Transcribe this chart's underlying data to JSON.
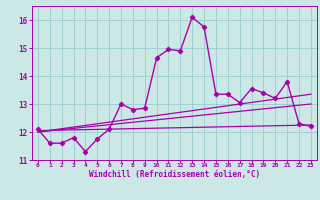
{
  "xlabel": "Windchill (Refroidissement éolien,°C)",
  "bg_color": "#cce8e6",
  "line_color": "#aa00aa",
  "grid_color": "#99cccc",
  "x": [
    0,
    1,
    2,
    3,
    4,
    5,
    6,
    7,
    8,
    9,
    10,
    11,
    12,
    13,
    14,
    15,
    16,
    17,
    18,
    19,
    20,
    21,
    22,
    23
  ],
  "y_main": [
    12.1,
    11.6,
    11.6,
    11.8,
    11.3,
    11.75,
    12.1,
    13.0,
    12.8,
    12.85,
    14.65,
    14.95,
    14.9,
    16.1,
    15.75,
    13.35,
    13.35,
    13.05,
    13.55,
    13.4,
    13.2,
    13.8,
    12.3,
    12.2
  ],
  "trend1_start": 12.05,
  "trend1_end": 12.25,
  "trend2_start": 12.0,
  "trend2_end": 13.0,
  "trend3_start": 12.0,
  "trend3_end": 13.35,
  "ylim": [
    11.0,
    16.5
  ],
  "xlim_min": 0,
  "xlim_max": 23
}
